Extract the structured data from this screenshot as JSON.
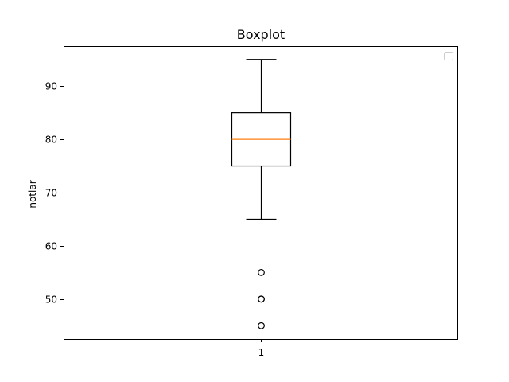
{
  "chart_data": {
    "type": "box",
    "title": "Boxplot",
    "xlabel": "",
    "ylabel": "notlar",
    "categories": [
      "1"
    ],
    "ylim": [
      42.5,
      97.5
    ],
    "yticks": [
      50,
      60,
      70,
      80,
      90
    ],
    "grid": false,
    "legend": {
      "placement": "top-right",
      "entries": []
    },
    "boxes": [
      {
        "category": "1",
        "whisker_low": 65,
        "q1": 75,
        "median": 80,
        "q3": 85,
        "whisker_high": 95,
        "fliers": [
          55,
          50,
          50,
          45
        ]
      }
    ],
    "colors": {
      "box": "#000000",
      "median": "#ff7f0e",
      "axes": "#000000"
    }
  }
}
